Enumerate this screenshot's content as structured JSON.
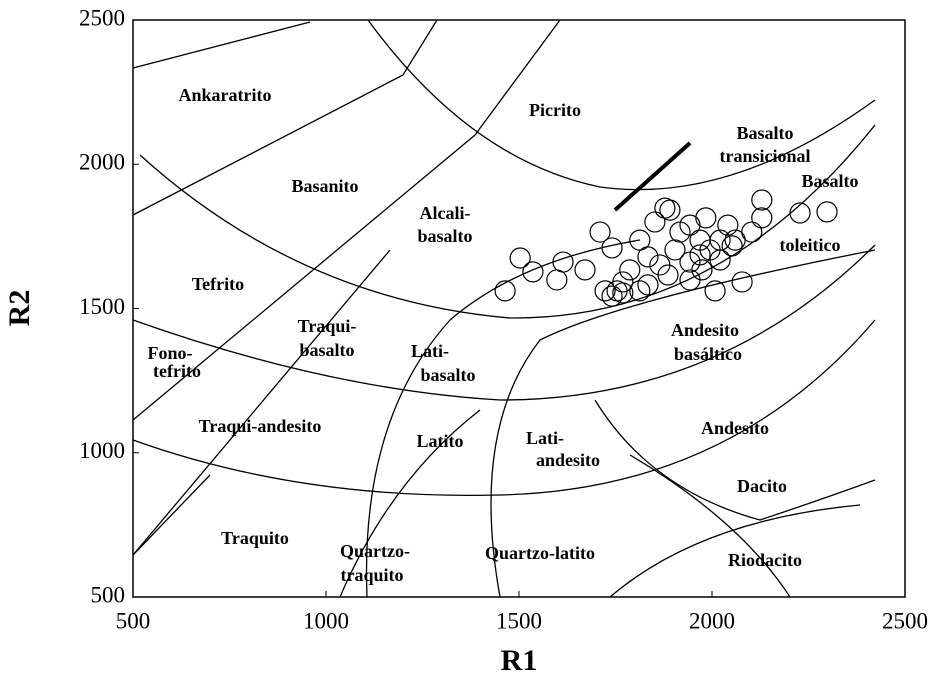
{
  "chart_data": {
    "type": "scatter",
    "xlabel": "R1",
    "ylabel": "R2",
    "xlim": [
      500,
      2500
    ],
    "ylim": [
      500,
      2500
    ],
    "xticks": [
      500,
      1000,
      1500,
      2000,
      2500
    ],
    "yticks": [
      500,
      1000,
      1500,
      2000,
      2500
    ],
    "marker": "open-circle",
    "color": "#000000",
    "series": [
      {
        "x": [
          1464,
          1503,
          1536,
          1598,
          1614,
          1671,
          1710,
          1741,
          1723,
          1754,
          1769,
          1787,
          1813,
          1834,
          1852,
          1878,
          1886,
          1904,
          1917,
          1943,
          1943,
          1969,
          1974,
          1984,
          1995,
          2008,
          2021,
          2041,
          2052,
          2078,
          2103,
          2129,
          2129,
          2228,
          2298,
          1891,
          1813,
          1741,
          1769,
          1834,
          1865,
          1969,
          1943,
          2021,
          2060
        ],
        "values": [
          1561,
          1675,
          1627,
          1599,
          1661,
          1634,
          1765,
          1710,
          1561,
          1561,
          1592,
          1634,
          1737,
          1679,
          1800,
          1848,
          1616,
          1703,
          1765,
          1789,
          1661,
          1737,
          1634,
          1814,
          1703,
          1561,
          1737,
          1789,
          1717,
          1592,
          1765,
          1876,
          1814,
          1831,
          1835,
          1841,
          1561,
          1543,
          1554,
          1582,
          1651,
          1686,
          1599,
          1668,
          1737
        ]
      }
    ],
    "annotations": [
      "Ankaratrito",
      "Picrito",
      "Basalto",
      "transicional",
      "Basanito",
      "Basalto",
      "Alcali-",
      "basalto",
      "toleitico",
      "Tefrito",
      "Traqui-",
      "basalto",
      "Fono-",
      "tefrito",
      "Andesito",
      "basáltico",
      "Lati-",
      "basalto",
      "Traqui-andesito",
      "Andesito",
      "Latito",
      "Lati-",
      "andesito",
      "Dacito",
      "Traquito",
      "Quartzo-",
      "traquito",
      "Quartzo-latito",
      "Riodacito"
    ]
  }
}
